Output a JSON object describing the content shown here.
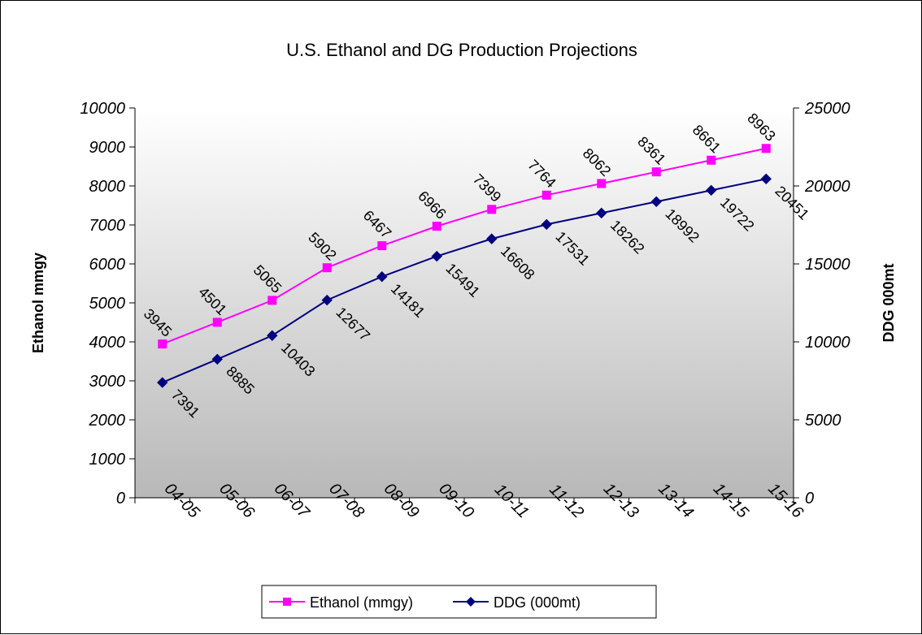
{
  "chart_data": {
    "type": "line",
    "title": "U.S. Ethanol and DG Production Projections",
    "categories": [
      "04-05",
      "05-06",
      "06-07",
      "07-08",
      "08-09",
      "09-10",
      "10-11",
      "11-12",
      "12-13",
      "13-14",
      "14-15",
      "15-16"
    ],
    "ylabel": "Ethanol mmgy",
    "y2label": "DDG 000mt",
    "ylim": [
      0,
      10000
    ],
    "y2lim": [
      0,
      25000
    ],
    "yticks": [
      "0",
      "1000",
      "2000",
      "3000",
      "4000",
      "5000",
      "6000",
      "7000",
      "8000",
      "9000",
      "10000"
    ],
    "y2ticks": [
      "0",
      "5000",
      "10000",
      "15000",
      "20000",
      "25000"
    ],
    "background": "gradient white to gray",
    "grid": false,
    "legend_position": "bottom",
    "series": [
      {
        "name": "Ethanol (mmgy)",
        "axis": "left",
        "color": "#ff00ff",
        "marker": "square",
        "values": [
          3945,
          4501,
          5065,
          5902,
          6467,
          6966,
          7399,
          7764,
          8062,
          8361,
          8661,
          8963
        ],
        "labels": [
          "3945",
          "4501",
          "5065",
          "5902",
          "6467",
          "6966",
          "7399",
          "7764",
          "8062",
          "8361",
          "8661",
          "8963"
        ]
      },
      {
        "name": "DDG (000mt)",
        "axis": "right",
        "color": "#000080",
        "marker": "diamond",
        "values": [
          7391,
          8885,
          10403,
          12677,
          14181,
          15491,
          16608,
          17531,
          18262,
          18992,
          19722,
          20451
        ],
        "labels": [
          "7391",
          "8885",
          "10403",
          "12677",
          "14181",
          "15491",
          "16608",
          "17531",
          "18262",
          "18992",
          "19722",
          "20451"
        ]
      }
    ]
  }
}
